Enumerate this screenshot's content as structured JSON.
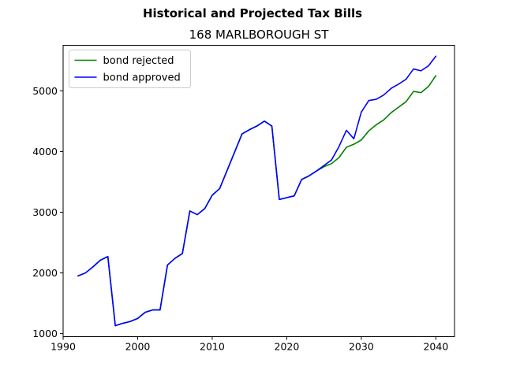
{
  "chart_data": {
    "type": "line",
    "suptitle": "Historical and Projected Tax Bills",
    "title": "168 MARLBOROUGH ST",
    "xlabel": "",
    "ylabel": "",
    "xlim": [
      1990,
      2042.5
    ],
    "ylim": [
      950,
      5750
    ],
    "xticks": [
      1990,
      2000,
      2010,
      2020,
      2030,
      2040
    ],
    "yticks": [
      1000,
      2000,
      3000,
      4000,
      5000
    ],
    "grid": false,
    "legend": {
      "placement": "top-left"
    },
    "series": [
      {
        "name": "bond rejected",
        "color": "#008000",
        "x": [
          1992,
          1993,
          1994,
          1995,
          1996,
          1997,
          1998,
          1999,
          2000,
          2001,
          2002,
          2003,
          2004,
          2005,
          2006,
          2007,
          2008,
          2009,
          2010,
          2011,
          2012,
          2013,
          2014,
          2015,
          2016,
          2017,
          2018,
          2019,
          2020,
          2021,
          2022,
          2023,
          2024,
          2025,
          2026,
          2027,
          2028,
          2029,
          2030,
          2031,
          2032,
          2033,
          2034,
          2035,
          2036,
          2037,
          2038,
          2039,
          2040
        ],
        "y": [
          1950,
          2000,
          2100,
          2210,
          2270,
          1130,
          1170,
          1200,
          1250,
          1350,
          1390,
          1390,
          2130,
          2240,
          2320,
          3020,
          2960,
          3060,
          3280,
          3390,
          3690,
          3990,
          4290,
          4360,
          4420,
          4500,
          4420,
          3210,
          3240,
          3270,
          3540,
          3600,
          3680,
          3750,
          3800,
          3900,
          4070,
          4120,
          4190,
          4340,
          4440,
          4520,
          4640,
          4730,
          4820,
          4990,
          4970,
          5070,
          5250
        ]
      },
      {
        "name": "bond approved",
        "color": "#0000ff",
        "x": [
          1992,
          1993,
          1994,
          1995,
          1996,
          1997,
          1998,
          1999,
          2000,
          2001,
          2002,
          2003,
          2004,
          2005,
          2006,
          2007,
          2008,
          2009,
          2010,
          2011,
          2012,
          2013,
          2014,
          2015,
          2016,
          2017,
          2018,
          2019,
          2020,
          2021,
          2022,
          2023,
          2024,
          2025,
          2026,
          2027,
          2028,
          2029,
          2030,
          2031,
          2032,
          2033,
          2034,
          2035,
          2036,
          2037,
          2038,
          2039,
          2040
        ],
        "y": [
          1950,
          2000,
          2100,
          2210,
          2270,
          1130,
          1170,
          1200,
          1250,
          1350,
          1390,
          1390,
          2130,
          2240,
          2320,
          3020,
          2960,
          3060,
          3280,
          3390,
          3690,
          3990,
          4290,
          4360,
          4420,
          4500,
          4420,
          3210,
          3240,
          3270,
          3540,
          3600,
          3680,
          3770,
          3860,
          4080,
          4350,
          4210,
          4650,
          4840,
          4860,
          4930,
          5040,
          5110,
          5190,
          5360,
          5330,
          5410,
          5570
        ]
      }
    ]
  }
}
